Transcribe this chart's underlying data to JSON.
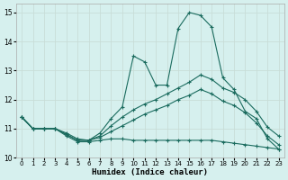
{
  "xlabel": "Humidex (Indice chaleur)",
  "xlim": [
    -0.5,
    23.5
  ],
  "ylim": [
    10,
    15.3
  ],
  "yticks": [
    10,
    11,
    12,
    13,
    14,
    15
  ],
  "xticks": [
    0,
    1,
    2,
    3,
    4,
    5,
    6,
    7,
    8,
    9,
    10,
    11,
    12,
    13,
    14,
    15,
    16,
    17,
    18,
    19,
    20,
    21,
    22,
    23
  ],
  "bg_color": "#d6f0ee",
  "line_color": "#1a6b5e",
  "grid_color": "#c8ddd8",
  "lines": {
    "max": [
      11.4,
      11.0,
      11.0,
      11.0,
      10.8,
      10.6,
      10.6,
      10.85,
      11.35,
      11.75,
      13.5,
      13.3,
      12.5,
      12.5,
      14.45,
      15.0,
      14.9,
      14.5,
      12.75,
      12.35,
      11.6,
      11.35,
      10.65,
      10.3
    ],
    "upper": [
      11.4,
      11.0,
      11.0,
      11.0,
      10.85,
      10.65,
      10.6,
      10.75,
      11.1,
      11.4,
      11.65,
      11.85,
      12.0,
      12.2,
      12.4,
      12.6,
      12.85,
      12.7,
      12.4,
      12.25,
      12.0,
      11.6,
      11.05,
      10.75
    ],
    "lower": [
      11.4,
      11.0,
      11.0,
      11.0,
      10.8,
      10.6,
      10.6,
      10.7,
      10.9,
      11.1,
      11.3,
      11.5,
      11.65,
      11.8,
      12.0,
      12.15,
      12.35,
      12.2,
      11.95,
      11.8,
      11.55,
      11.2,
      10.75,
      10.45
    ],
    "min": [
      11.4,
      11.0,
      11.0,
      11.0,
      10.75,
      10.55,
      10.55,
      10.6,
      10.65,
      10.65,
      10.6,
      10.6,
      10.6,
      10.6,
      10.6,
      10.6,
      10.6,
      10.6,
      10.55,
      10.5,
      10.45,
      10.4,
      10.35,
      10.3
    ]
  }
}
